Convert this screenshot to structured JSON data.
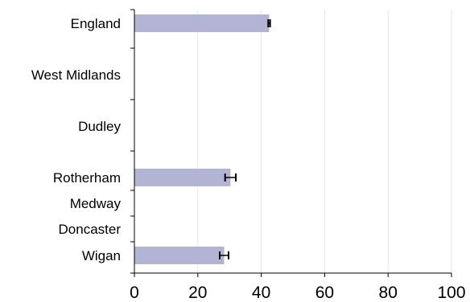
{
  "chart_data": {
    "type": "bar",
    "orientation": "horizontal",
    "categories": [
      "England",
      "West Midlands",
      "Dudley",
      "Rotherham",
      "Medway",
      "Doncaster",
      "Wigan"
    ],
    "values": [
      42.5,
      0,
      0,
      30.3,
      0,
      0,
      28.3
    ],
    "error": [
      {
        "low": 42.2,
        "high": 42.8
      },
      null,
      null,
      {
        "low": 28.6,
        "high": 32.0
      },
      null,
      null,
      {
        "low": 26.9,
        "high": 29.7
      }
    ],
    "x_ticks": [
      "0",
      "20",
      "40",
      "60",
      "80",
      "100"
    ],
    "xlim": [
      0,
      100
    ],
    "grid": "vertical",
    "title": "",
    "xlabel": "",
    "ylabel": "",
    "bar_color": "#b3b3d3",
    "grid_color": "#e6e6e6"
  }
}
